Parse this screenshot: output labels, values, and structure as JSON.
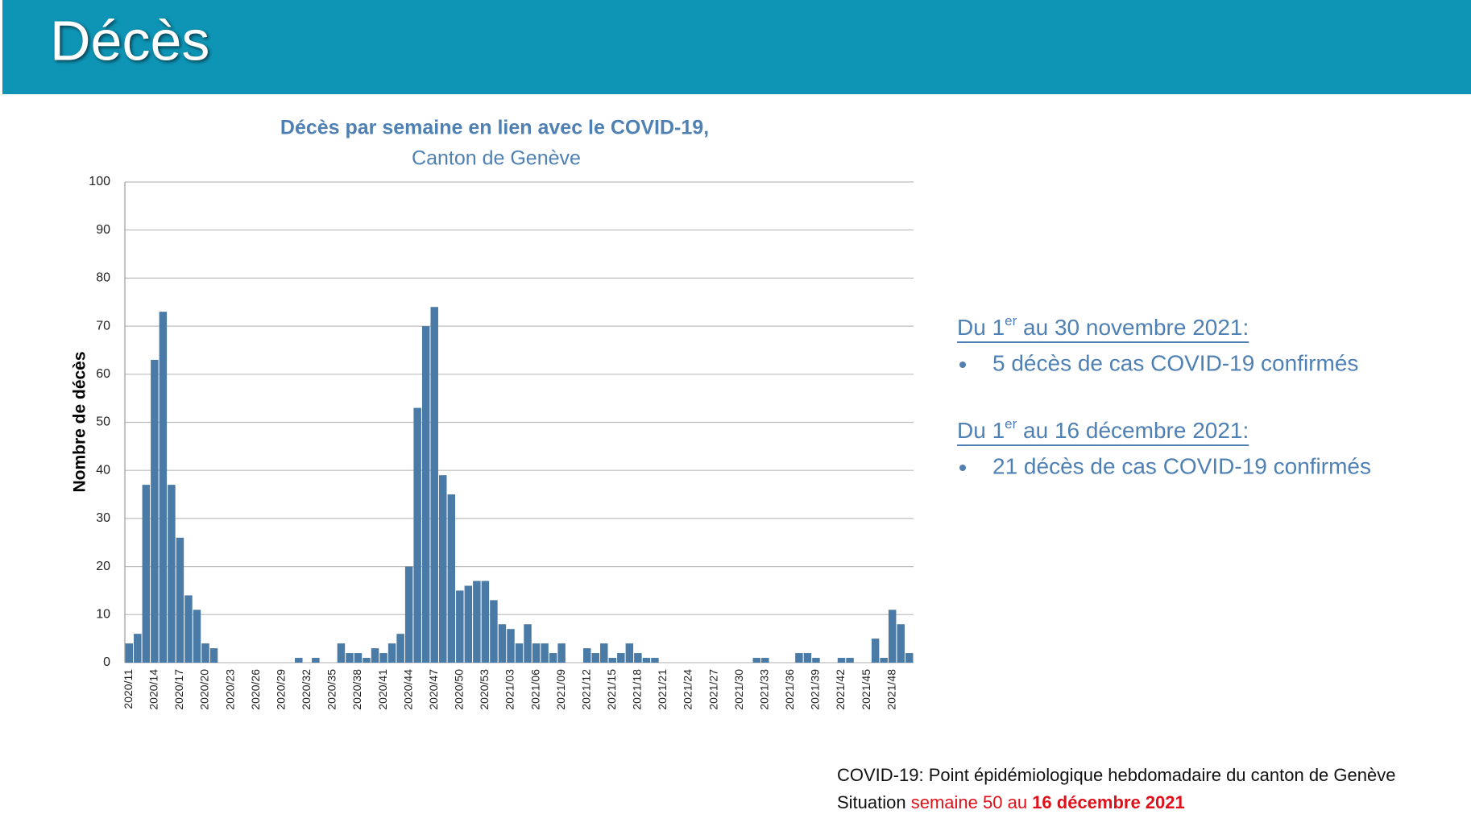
{
  "header": {
    "title": "Décès"
  },
  "chart_data": {
    "type": "bar",
    "title": "Décès par semaine en lien avec le COVID-19,",
    "subtitle": "Canton de Genève",
    "y_label": "Nombre de décès",
    "categories": [
      "2020/11",
      null,
      null,
      "2020/14",
      null,
      null,
      "2020/17",
      null,
      null,
      "2020/20",
      null,
      null,
      "2020/23",
      null,
      null,
      "2020/26",
      null,
      null,
      "2020/29",
      null,
      null,
      "2020/32",
      null,
      null,
      "2020/35",
      null,
      null,
      "2020/38",
      null,
      null,
      "2020/41",
      null,
      null,
      "2020/44",
      null,
      null,
      "2020/47",
      null,
      null,
      "2020/50",
      null,
      null,
      "2020/53",
      null,
      null,
      "2021/03",
      null,
      null,
      "2021/06",
      null,
      null,
      "2021/09",
      null,
      null,
      "2021/12",
      null,
      null,
      "2021/15",
      null,
      null,
      "2021/18",
      null,
      null,
      "2021/21",
      null,
      null,
      "2021/24",
      null,
      null,
      "2021/27",
      null,
      null,
      "2021/30",
      null,
      null,
      "2021/33",
      null,
      null,
      "2021/36",
      null,
      null,
      "2021/39",
      null,
      null,
      "2021/42",
      null,
      null,
      "2021/45",
      null,
      null,
      "2021/48",
      null,
      null
    ],
    "values": [
      4,
      6,
      37,
      63,
      73,
      37,
      26,
      14,
      11,
      4,
      3,
      0,
      0,
      0,
      0,
      0,
      0,
      0,
      0,
      0,
      1,
      0,
      1,
      0,
      0,
      4,
      2,
      2,
      1,
      3,
      2,
      4,
      6,
      20,
      53,
      70,
      74,
      39,
      35,
      15,
      16,
      17,
      17,
      13,
      8,
      7,
      4,
      8,
      4,
      4,
      2,
      4,
      0,
      0,
      3,
      2,
      4,
      1,
      2,
      4,
      2,
      1,
      1,
      0,
      0,
      0,
      0,
      0,
      0,
      0,
      0,
      0,
      0,
      0,
      1,
      1,
      0,
      0,
      0,
      2,
      2,
      1,
      0,
      0,
      1,
      1,
      0,
      0,
      5,
      1,
      11,
      8,
      2
    ],
    "color": "#4a7aa6",
    "ylim": [
      0,
      100
    ],
    "yticks": [
      0,
      10,
      20,
      30,
      40,
      50,
      60,
      70,
      80,
      90,
      100
    ],
    "grid": true
  },
  "notes": [
    {
      "heading_prefix": "Du 1",
      "heading_sup": "er",
      "heading_rest": " au 30 novembre 2021:",
      "bullet": "5 décès de cas COVID-19 confirmés"
    },
    {
      "heading_prefix": "Du 1",
      "heading_sup": "er",
      "heading_rest": " au 16 décembre 2021:",
      "bullet": "21 décès de cas COVID-19 confirmés"
    }
  ],
  "footer": {
    "line1": "COVID-19: Point épidémiologique hebdomadaire du canton de Genève",
    "line2_prefix": "Situation ",
    "line2_week": "semaine 50 au ",
    "line2_date": "16 décembre 2021"
  }
}
